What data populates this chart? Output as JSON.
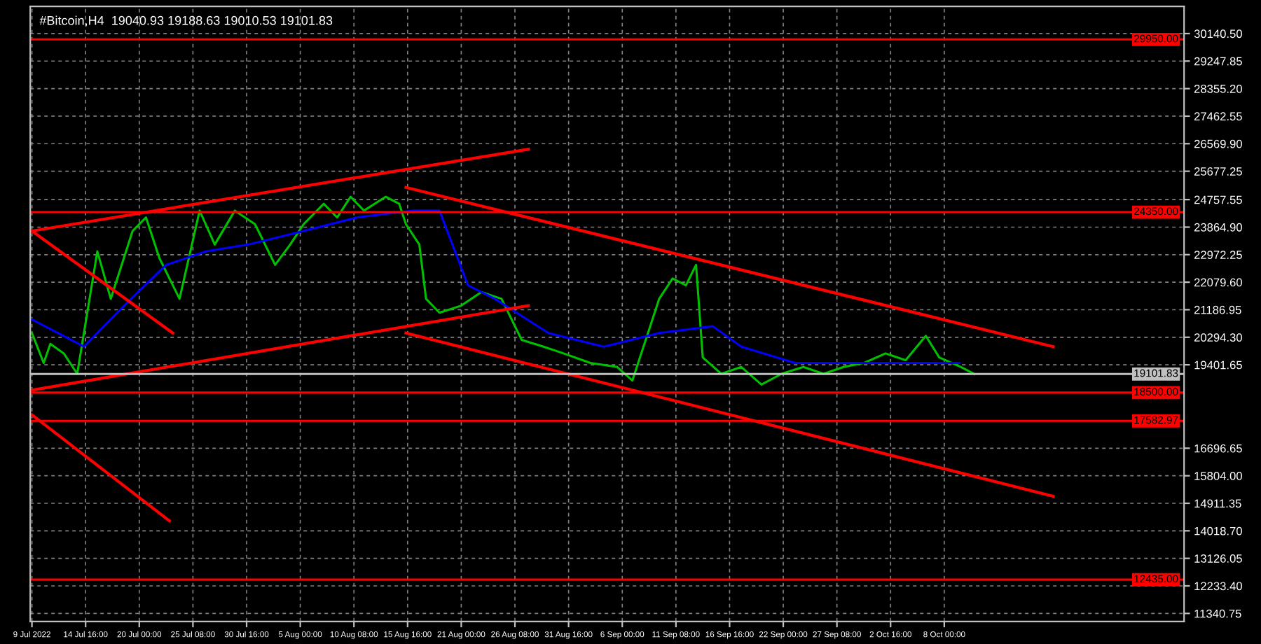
{
  "chart_data": {
    "type": "line",
    "title": "#Bitcoin,H4  19040.93 19188.63 19010.53 19101.83",
    "xlim": [
      "2022-07-09T04:00",
      "2022-10-31T20:00"
    ],
    "ylim": [
      11080,
      31020
    ],
    "xticks": [
      {
        "value": "2022-07-09T08:00",
        "label": "9 Jul 2022"
      },
      {
        "value": "2022-07-14T16:00",
        "label": "14 Jul 16:00"
      },
      {
        "value": "2022-07-20T00:00",
        "label": "20 Jul 00:00"
      },
      {
        "value": "2022-07-25T08:00",
        "label": "25 Jul 08:00"
      },
      {
        "value": "2022-07-30T16:00",
        "label": "30 Jul 16:00"
      },
      {
        "value": "2022-08-05T00:00",
        "label": "5 Aug 00:00"
      },
      {
        "value": "2022-08-10T08:00",
        "label": "10 Aug 08:00"
      },
      {
        "value": "2022-08-15T16:00",
        "label": "15 Aug 16:00"
      },
      {
        "value": "2022-08-21T00:00",
        "label": "21 Aug 00:00"
      },
      {
        "value": "2022-08-26T08:00",
        "label": "26 Aug 08:00"
      },
      {
        "value": "2022-08-31T16:00",
        "label": "31 Aug 16:00"
      },
      {
        "value": "2022-09-06T00:00",
        "label": "6 Sep 00:00"
      },
      {
        "value": "2022-09-11T08:00",
        "label": "11 Sep 08:00"
      },
      {
        "value": "2022-09-16T16:00",
        "label": "16 Sep 16:00"
      },
      {
        "value": "2022-09-22T00:00",
        "label": "22 Sep 00:00"
      },
      {
        "value": "2022-09-27T08:00",
        "label": "27 Sep 08:00"
      },
      {
        "value": "2022-10-02T16:00",
        "label": "2 Oct 16:00"
      },
      {
        "value": "2022-10-08T00:00",
        "label": "8 Oct 00:00"
      }
    ],
    "yticks": [
      {
        "value": 30140.5,
        "label": "30140.50"
      },
      {
        "value": 29247.85,
        "label": "29247.85"
      },
      {
        "value": 28355.2,
        "label": "28355.20"
      },
      {
        "value": 27462.55,
        "label": "27462.55"
      },
      {
        "value": 26569.9,
        "label": "26569.90"
      },
      {
        "value": 25677.25,
        "label": "25677.25"
      },
      {
        "value": 24757.55,
        "label": "24757.55"
      },
      {
        "value": 23864.9,
        "label": "23864.90"
      },
      {
        "value": 22972.25,
        "label": "22972.25"
      },
      {
        "value": 22079.6,
        "label": "22079.60"
      },
      {
        "value": 21186.95,
        "label": "21186.95"
      },
      {
        "value": 20294.3,
        "label": "20294.30"
      },
      {
        "value": 19401.65,
        "label": "19401.65"
      },
      {
        "value": 16696.65,
        "label": "16696.65"
      },
      {
        "value": 15804,
        "label": "15804.00"
      },
      {
        "value": 14911.35,
        "label": "14911.35"
      },
      {
        "value": 14018.7,
        "label": "14018.70"
      },
      {
        "value": 13126.05,
        "label": "13126.05"
      },
      {
        "value": 12233.4,
        "label": "12233.40"
      },
      {
        "value": 11340.75,
        "label": "11340.75"
      }
    ],
    "grid": true,
    "legend": false,
    "series": [
      {
        "color": "#00c000",
        "x": [
          "2022-07-09T08:00",
          "2022-07-10T12:00",
          "2022-07-11T04:00",
          "2022-07-12T12:00",
          "2022-07-13T20:00",
          "2022-07-15T20:00",
          "2022-07-17T04:00",
          "2022-07-19T08:00",
          "2022-07-20T16:00",
          "2022-07-22T00:00",
          "2022-07-24T00:00",
          "2022-07-26T00:00",
          "2022-07-27T12:00",
          "2022-07-29T12:00",
          "2022-07-31T12:00",
          "2022-08-02T12:00",
          "2022-08-04T00:00",
          "2022-08-05T08:00",
          "2022-08-07T08:00",
          "2022-08-08T16:00",
          "2022-08-10T00:00",
          "2022-08-11T08:00",
          "2022-08-13T12:00",
          "2022-08-14T20:00",
          "2022-08-15T12:00",
          "2022-08-16T20:00",
          "2022-08-17T12:00",
          "2022-08-18T20:00",
          "2022-08-21T00:00",
          "2022-08-23T00:00",
          "2022-08-25T00:00",
          "2022-08-27T00:00",
          "2022-08-29T04:00",
          "2022-08-31T04:00",
          "2022-09-02T20:00",
          "2022-09-05T12:00",
          "2022-09-07T00:00",
          "2022-09-08T08:00",
          "2022-09-09T16:00",
          "2022-09-11T00:00",
          "2022-09-12T08:00",
          "2022-09-13T08:00",
          "2022-09-14T00:00",
          "2022-09-15T20:00",
          "2022-09-17T20:00",
          "2022-09-19T20:00",
          "2022-09-21T20:00",
          "2022-09-24T00:00",
          "2022-09-26T00:00",
          "2022-09-28T00:00",
          "2022-09-30T00:00",
          "2022-10-02T04:00",
          "2022-10-04T04:00",
          "2022-10-06T04:00",
          "2022-10-07T12:00",
          "2022-10-09T16:00",
          "2022-10-11T00:00"
        ],
        "values": [
          20430,
          19460,
          20080,
          19770,
          19110,
          23080,
          21540,
          23740,
          24180,
          22860,
          21540,
          24400,
          23300,
          24400,
          23960,
          22640,
          23300,
          23960,
          24620,
          24180,
          24850,
          24400,
          24850,
          24620,
          23960,
          23300,
          21540,
          21090,
          21320,
          21760,
          21540,
          20210,
          19990,
          19770,
          19460,
          19330,
          18890,
          20210,
          21540,
          22200,
          21980,
          22640,
          19640,
          19110,
          19330,
          18760,
          19110,
          19330,
          19110,
          19330,
          19460,
          19770,
          19550,
          20340,
          19640,
          19330,
          19100
        ]
      },
      {
        "color": "#0000ff",
        "x": [
          "2022-07-09T08:00",
          "2022-07-14T12:00",
          "2022-07-18T12:00",
          "2022-07-22T16:00",
          "2022-07-26T16:00",
          "2022-07-30T20:00",
          "2022-08-05T08:00",
          "2022-08-10T16:00",
          "2022-08-16T04:00",
          "2022-08-18T20:00",
          "2022-08-21T16:00",
          "2022-08-24T08:00",
          "2022-08-29T16:00",
          "2022-09-04T04:00",
          "2022-09-09T16:00",
          "2022-09-15T00:00",
          "2022-09-17T20:00",
          "2022-09-23T04:00",
          "2022-09-28T16:00",
          "2022-10-04T04:00",
          "2022-10-09T12:00"
        ],
        "values": [
          20870,
          19990,
          21320,
          22640,
          23080,
          23300,
          23740,
          24180,
          24400,
          24400,
          21980,
          21540,
          20430,
          19990,
          20430,
          20650,
          19990,
          19460,
          19460,
          19460,
          19460
        ]
      },
      {
        "color": "#ff0000",
        "x": [
          "2022-07-09T08:00",
          "2022-08-27T16:00"
        ],
        "values": [
          23740,
          26390
        ]
      },
      {
        "color": "#ff0000",
        "x": [
          "2022-07-09T08:00",
          "2022-08-27T16:00"
        ],
        "values": [
          18580,
          21320
        ]
      },
      {
        "color": "#ff0000",
        "x": [
          "2022-08-15T12:00",
          "2022-10-18T20:00"
        ],
        "values": [
          25150,
          19990
        ]
      },
      {
        "color": "#ff0000",
        "x": [
          "2022-08-15T12:00",
          "2022-10-18T20:00"
        ],
        "values": [
          20430,
          15140
        ]
      },
      {
        "color": "#ff0000",
        "x": [
          "2022-07-09T08:00",
          "2022-07-23T08:00"
        ],
        "values": [
          23740,
          20430
        ]
      },
      {
        "color": "#ff0000",
        "x": [
          "2022-07-09T08:00",
          "2022-07-23T00:00"
        ],
        "values": [
          17780,
          14340
        ]
      }
    ],
    "ref_lines": [
      {
        "axis": "y",
        "value": 29950,
        "label": "29950.00",
        "color": "#ff0000"
      },
      {
        "axis": "y",
        "value": 24350,
        "label": "24350.00",
        "color": "#ff0000"
      },
      {
        "axis": "y",
        "value": 19101.83,
        "label": "19101.83",
        "color": "#c0c0c0"
      },
      {
        "axis": "y",
        "value": 18500,
        "label": "18500.00",
        "color": "#ff0000"
      },
      {
        "axis": "y",
        "value": 17582.97,
        "label": "17582.97",
        "color": "#ff0000"
      },
      {
        "axis": "y",
        "value": 12435,
        "label": "12435.00",
        "color": "#ff0000"
      }
    ]
  }
}
